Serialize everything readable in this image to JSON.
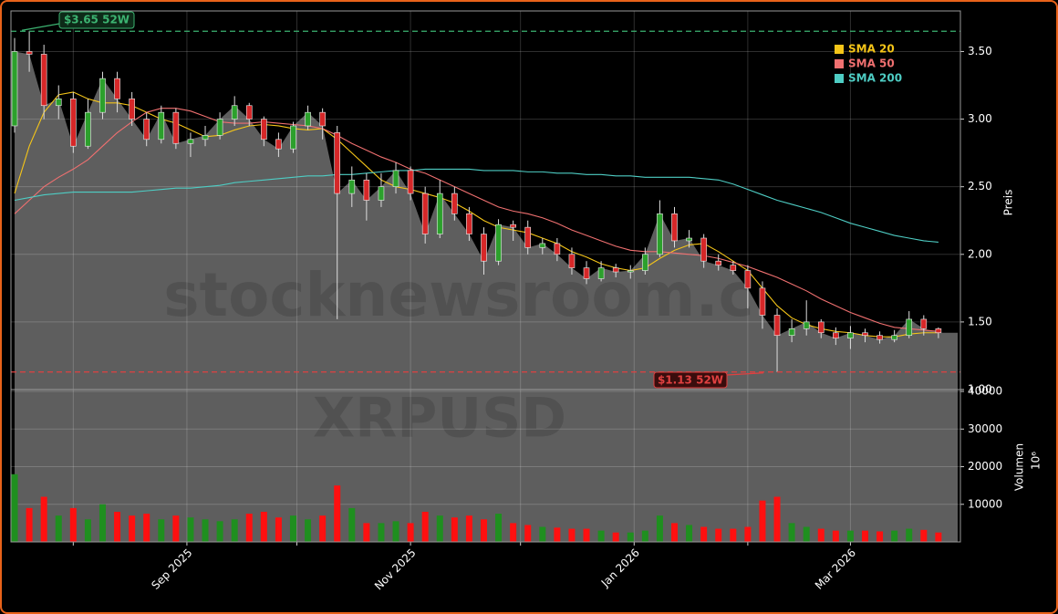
{
  "chart_data": {
    "type": "candlestick",
    "watermark": "stocknewsroom.com",
    "symbol": "XRPUSD",
    "ylabel": "Preis",
    "xlim": [
      "2025-07-15",
      "2026-03-31"
    ],
    "ylim": [
      1.0,
      3.8
    ],
    "yticks": [
      {
        "value": 1.0,
        "label": "1.00"
      },
      {
        "value": 1.5,
        "label": "1.50"
      },
      {
        "value": 2.0,
        "label": "2.00"
      },
      {
        "value": 2.5,
        "label": "2.50"
      },
      {
        "value": 3.0,
        "label": "3.00"
      },
      {
        "value": 3.5,
        "label": "3.50"
      }
    ],
    "xticks": [
      {
        "value": "2025-08-01",
        "label": null
      },
      {
        "value": "2025-09-01",
        "label": "Sep 2025"
      },
      {
        "value": "2025-10-01",
        "label": null
      },
      {
        "value": "2025-11-01",
        "label": "Nov 2025"
      },
      {
        "value": "2025-12-01",
        "label": null
      },
      {
        "value": "2026-01-01",
        "label": "Jan 2026"
      },
      {
        "value": "2026-02-01",
        "label": null
      },
      {
        "value": "2026-03-01",
        "label": "Mar 2026"
      }
    ],
    "grid": true,
    "up_color": "#2ca02c",
    "down_color": "#d62728",
    "area_color": "#5e5e5e",
    "x": [
      "2025-07-16",
      "2025-07-20",
      "2025-07-24",
      "2025-07-28",
      "2025-08-01",
      "2025-08-05",
      "2025-08-09",
      "2025-08-13",
      "2025-08-17",
      "2025-08-21",
      "2025-08-25",
      "2025-08-29",
      "2025-09-02",
      "2025-09-06",
      "2025-09-10",
      "2025-09-14",
      "2025-09-18",
      "2025-09-22",
      "2025-09-26",
      "2025-09-30",
      "2025-10-04",
      "2025-10-08",
      "2025-10-12",
      "2025-10-16",
      "2025-10-20",
      "2025-10-24",
      "2025-10-28",
      "2025-11-01",
      "2025-11-05",
      "2025-11-09",
      "2025-11-13",
      "2025-11-17",
      "2025-11-21",
      "2025-11-25",
      "2025-11-29",
      "2025-12-03",
      "2025-12-07",
      "2025-12-11",
      "2025-12-15",
      "2025-12-19",
      "2025-12-23",
      "2025-12-27",
      "2025-12-31",
      "2026-01-04",
      "2026-01-08",
      "2026-01-12",
      "2026-01-16",
      "2026-01-20",
      "2026-01-24",
      "2026-01-28",
      "2026-02-01",
      "2026-02-05",
      "2026-02-09",
      "2026-02-13",
      "2026-02-17",
      "2026-02-21",
      "2026-02-25",
      "2026-03-01",
      "2026-03-05",
      "2026-03-09",
      "2026-03-13",
      "2026-03-17",
      "2026-03-21",
      "2026-03-25"
    ],
    "open": [
      2.95,
      3.5,
      3.48,
      3.1,
      3.15,
      2.8,
      3.05,
      3.3,
      3.15,
      3.0,
      2.85,
      3.05,
      2.82,
      2.85,
      2.88,
      3.0,
      3.1,
      3.0,
      2.85,
      2.78,
      2.95,
      3.05,
      2.9,
      2.45,
      2.55,
      2.4,
      2.5,
      2.62,
      2.45,
      2.15,
      2.45,
      2.3,
      2.15,
      1.95,
      2.22,
      2.2,
      2.05,
      2.08,
      2.0,
      1.9,
      1.82,
      1.9,
      1.87,
      1.88,
      2.0,
      2.3,
      2.1,
      2.12,
      1.95,
      1.92,
      1.88,
      1.75,
      1.55,
      1.4,
      1.45,
      1.5,
      1.42,
      1.38,
      1.42,
      1.4,
      1.37,
      1.4,
      1.52,
      1.45
    ],
    "high": [
      3.6,
      3.65,
      3.55,
      3.25,
      3.2,
      3.15,
      3.35,
      3.35,
      3.2,
      3.05,
      3.1,
      3.08,
      2.9,
      2.95,
      3.05,
      3.17,
      3.12,
      3.02,
      2.9,
      2.98,
      3.1,
      3.08,
      2.95,
      2.65,
      2.6,
      2.6,
      2.68,
      2.65,
      2.5,
      2.55,
      2.5,
      2.35,
      2.2,
      2.26,
      2.25,
      2.25,
      2.12,
      2.12,
      2.05,
      1.95,
      1.95,
      1.93,
      1.92,
      2.05,
      2.4,
      2.35,
      2.18,
      2.15,
      2.0,
      1.95,
      1.92,
      1.8,
      1.6,
      1.52,
      1.66,
      1.52,
      1.46,
      1.47,
      1.45,
      1.43,
      1.44,
      1.58,
      1.55,
      1.46
    ],
    "low": [
      2.9,
      3.35,
      3.0,
      3.0,
      2.75,
      2.78,
      3.0,
      3.05,
      2.95,
      2.8,
      2.82,
      2.78,
      2.72,
      2.8,
      2.85,
      2.95,
      2.95,
      2.8,
      2.72,
      2.75,
      2.92,
      2.85,
      1.52,
      2.35,
      2.25,
      2.35,
      2.45,
      2.4,
      2.08,
      2.12,
      2.25,
      2.1,
      1.85,
      1.92,
      2.1,
      2.0,
      2.0,
      1.95,
      1.85,
      1.78,
      1.8,
      1.83,
      1.82,
      1.85,
      1.98,
      2.05,
      2.05,
      1.9,
      1.88,
      1.85,
      1.6,
      1.45,
      1.13,
      1.35,
      1.4,
      1.38,
      1.33,
      1.3,
      1.35,
      1.34,
      1.35,
      1.38,
      1.4,
      1.38
    ],
    "close": [
      3.5,
      3.48,
      3.1,
      3.15,
      2.8,
      3.05,
      3.3,
      3.15,
      3.0,
      2.85,
      3.05,
      2.82,
      2.85,
      2.88,
      3.0,
      3.1,
      3.0,
      2.85,
      2.78,
      2.95,
      3.05,
      2.95,
      2.45,
      2.55,
      2.4,
      2.5,
      2.62,
      2.45,
      2.15,
      2.45,
      2.3,
      2.15,
      1.95,
      2.22,
      2.2,
      2.05,
      2.08,
      2.0,
      1.9,
      1.82,
      1.9,
      1.87,
      1.88,
      2.0,
      2.3,
      2.1,
      2.12,
      1.95,
      1.92,
      1.88,
      1.75,
      1.55,
      1.4,
      1.45,
      1.5,
      1.42,
      1.38,
      1.42,
      1.4,
      1.37,
      1.4,
      1.52,
      1.45,
      1.42
    ],
    "series": [
      {
        "name": "SMA 20",
        "color": "#f5c518",
        "values": [
          2.45,
          2.8,
          3.05,
          3.18,
          3.2,
          3.15,
          3.12,
          3.12,
          3.1,
          3.05,
          3.0,
          2.97,
          2.92,
          2.87,
          2.88,
          2.92,
          2.95,
          2.96,
          2.95,
          2.93,
          2.92,
          2.93,
          2.85,
          2.75,
          2.65,
          2.55,
          2.5,
          2.48,
          2.45,
          2.42,
          2.38,
          2.32,
          2.25,
          2.2,
          2.18,
          2.16,
          2.12,
          2.08,
          2.02,
          1.98,
          1.93,
          1.9,
          1.88,
          1.9,
          1.97,
          2.03,
          2.07,
          2.08,
          2.02,
          1.95,
          1.88,
          1.75,
          1.62,
          1.53,
          1.48,
          1.45,
          1.43,
          1.42,
          1.4,
          1.39,
          1.39,
          1.41,
          1.42,
          1.42
        ]
      },
      {
        "name": "SMA 50",
        "color": "#f07070",
        "values": [
          2.3,
          2.4,
          2.5,
          2.57,
          2.63,
          2.7,
          2.8,
          2.9,
          2.98,
          3.05,
          3.08,
          3.08,
          3.06,
          3.02,
          2.98,
          2.97,
          2.97,
          2.98,
          2.97,
          2.96,
          2.95,
          2.93,
          2.88,
          2.82,
          2.77,
          2.72,
          2.68,
          2.63,
          2.6,
          2.55,
          2.5,
          2.45,
          2.4,
          2.35,
          2.32,
          2.3,
          2.27,
          2.23,
          2.18,
          2.14,
          2.1,
          2.06,
          2.03,
          2.02,
          2.02,
          2.01,
          2.0,
          1.99,
          1.97,
          1.94,
          1.91,
          1.87,
          1.83,
          1.78,
          1.73,
          1.67,
          1.62,
          1.57,
          1.53,
          1.49,
          1.46,
          1.45,
          1.44,
          1.43
        ]
      },
      {
        "name": "SMA 200",
        "color": "#4ecdc4",
        "values": [
          2.4,
          2.42,
          2.44,
          2.45,
          2.46,
          2.46,
          2.46,
          2.46,
          2.46,
          2.47,
          2.48,
          2.49,
          2.49,
          2.5,
          2.51,
          2.53,
          2.54,
          2.55,
          2.56,
          2.57,
          2.58,
          2.58,
          2.59,
          2.59,
          2.6,
          2.61,
          2.62,
          2.62,
          2.63,
          2.63,
          2.63,
          2.63,
          2.62,
          2.62,
          2.62,
          2.61,
          2.61,
          2.6,
          2.6,
          2.59,
          2.59,
          2.58,
          2.58,
          2.57,
          2.57,
          2.57,
          2.57,
          2.56,
          2.55,
          2.52,
          2.48,
          2.44,
          2.4,
          2.37,
          2.34,
          2.31,
          2.27,
          2.23,
          2.2,
          2.17,
          2.14,
          2.12,
          2.1,
          2.09
        ]
      }
    ],
    "legend": "upper right",
    "high_line": {
      "value": 3.65,
      "label": "$3.65 52W",
      "color": "#3cb371"
    },
    "low_line": {
      "value": 1.13,
      "label": "$1.13 52W",
      "color": "#e04040"
    },
    "volume": {
      "label": "Volumen",
      "offset_label": "10⁶",
      "ylim": [
        0,
        40500
      ],
      "yticks": [
        10000,
        20000,
        30000,
        40000
      ],
      "up_color": "#1f8f1f",
      "down_color": "#ff1010",
      "values": [
        18000,
        9000,
        12000,
        7000,
        9000,
        6000,
        10000,
        8000,
        7000,
        7500,
        6000,
        7000,
        6500,
        6000,
        5500,
        6000,
        7500,
        8000,
        6500,
        7000,
        6000,
        7000,
        15000,
        9000,
        5000,
        5000,
        5500,
        5000,
        8000,
        7000,
        6500,
        7000,
        6000,
        7500,
        5000,
        4500,
        4000,
        3800,
        3500,
        3500,
        3000,
        2500,
        2500,
        3000,
        7000,
        5000,
        4500,
        4000,
        3500,
        3500,
        4000,
        11000,
        12000,
        5000,
        4000,
        3500,
        3000,
        3000,
        3000,
        2800,
        3000,
        3500,
        3200,
        2500
      ]
    }
  }
}
